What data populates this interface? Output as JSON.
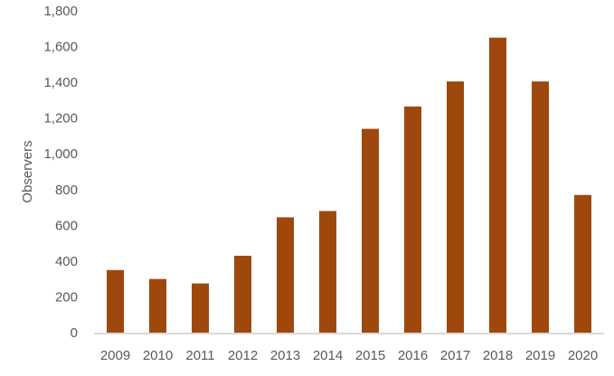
{
  "chart_data": {
    "type": "bar",
    "title": "",
    "xlabel": "",
    "ylabel": "Observers",
    "categories": [
      "2009",
      "2010",
      "2011",
      "2012",
      "2013",
      "2014",
      "2015",
      "2016",
      "2017",
      "2018",
      "2019",
      "2020"
    ],
    "values": [
      350,
      300,
      275,
      430,
      645,
      680,
      1140,
      1265,
      1405,
      1650,
      1405,
      770
    ],
    "ylim": [
      0,
      1800
    ],
    "yticks": [
      0,
      200,
      400,
      600,
      800,
      1000,
      1200,
      1400,
      1600,
      1800
    ],
    "ytick_labels": [
      "0",
      "200",
      "400",
      "600",
      "800",
      "1,000",
      "1,200",
      "1,400",
      "1,600",
      "1,800"
    ],
    "grid": false,
    "legend": "none",
    "colors": {
      "bar": "#9E480E",
      "axis": "#D9D9D9",
      "text": "#595959"
    }
  }
}
